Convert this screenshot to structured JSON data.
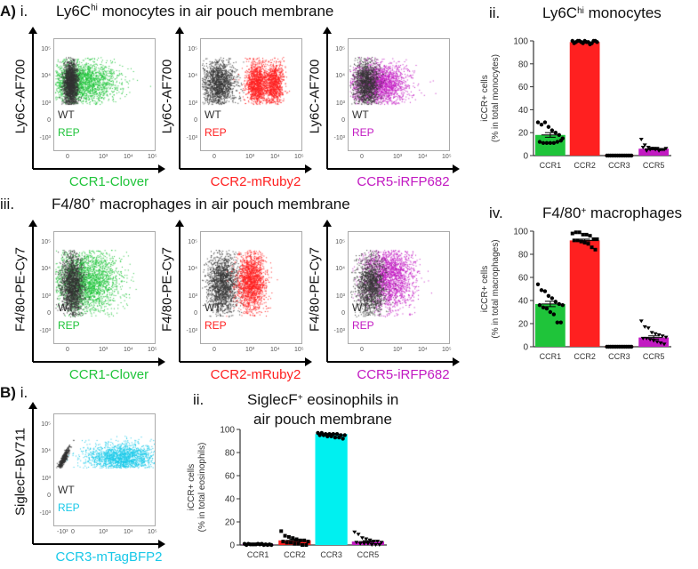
{
  "panelA": {
    "label": "A)",
    "row1": {
      "num": "i.",
      "title_pre": "Ly6C",
      "title_sup": "hi",
      "title_post": " monocytes in air pouch membrane"
    },
    "row2": {
      "num": "iii.",
      "title_pre": "F4/80",
      "title_sup": "+",
      "title_post": " macrophages in air pouch membrane"
    }
  },
  "panelB": {
    "label": "B)",
    "num": "i."
  },
  "colors": {
    "green": "#1fc43a",
    "red": "#ff2020",
    "magenta": "#c21ac2",
    "cyan": "#18c8e8",
    "wt": "#333333"
  },
  "flow_plots": [
    {
      "id": "a1",
      "ylabel": "Ly6C-AF700",
      "xlabel": "CCR1-Clover",
      "color": "#1fc43a",
      "wt": "WT",
      "rep": "REP",
      "yticks": [
        "10⁵",
        "10⁴",
        "10³",
        "0",
        "-10³"
      ],
      "xticks": [
        "0",
        "10³",
        "10⁴",
        "10⁵"
      ]
    },
    {
      "id": "a2",
      "ylabel": "Ly6C-AF700",
      "xlabel": "CCR2-mRuby2",
      "color": "#ff2020",
      "wt": "WT",
      "rep": "REP",
      "yticks": [
        "10⁵",
        "10⁴",
        "10³",
        "0",
        "-10³"
      ],
      "xticks": [
        "0",
        "10³",
        "10⁴",
        "10⁵"
      ]
    },
    {
      "id": "a3",
      "ylabel": "Ly6C-AF700",
      "xlabel": "CCR5-iRFP682",
      "color": "#c21ac2",
      "wt": "WT",
      "rep": "REP",
      "yticks": [
        "10⁵",
        "10⁴",
        "10³",
        "0",
        "-10³"
      ],
      "xticks": [
        "0",
        "10³",
        "10⁴",
        "10⁵"
      ]
    },
    {
      "id": "a4",
      "ylabel": "F4/80-PE-Cy7",
      "xlabel": "CCR1-Clover",
      "color": "#1fc43a",
      "wt": "WT",
      "rep": "REP",
      "yticks": [
        "10⁵",
        "10⁴",
        "10³",
        "0",
        "-10³"
      ],
      "xticks": [
        "0",
        "10³",
        "10⁴",
        "10⁵"
      ]
    },
    {
      "id": "a5",
      "ylabel": "F4/80-PE-Cy7",
      "xlabel": "CCR2-mRuby2",
      "color": "#ff2020",
      "wt": "WT",
      "rep": "REP",
      "yticks": [
        "10⁵",
        "10⁴",
        "10³",
        "0",
        "-10³"
      ],
      "xticks": [
        "0",
        "10³",
        "10⁴",
        "10⁵"
      ]
    },
    {
      "id": "a6",
      "ylabel": "F4/80-PE-Cy7",
      "xlabel": "CCR5-iRFP682",
      "color": "#c21ac2",
      "wt": "WT",
      "rep": "REP",
      "yticks": [
        "10⁵",
        "10⁴",
        "10³",
        "0",
        "-10³"
      ],
      "xticks": [
        "0",
        "10³",
        "10⁴",
        "10⁵"
      ]
    },
    {
      "id": "b1",
      "ylabel": "SiglecF-BV711",
      "xlabel": "CCR3-mTagBFP2",
      "color": "#18c8e8",
      "wt": "WT",
      "rep": "REP",
      "yticks": [
        "10⁵",
        "10⁴",
        "10³",
        "0",
        "-10³"
      ],
      "xticks": [
        "-10³",
        "0",
        "10³",
        "10⁴",
        "10⁵"
      ]
    }
  ],
  "chart_data": [
    {
      "type": "bar",
      "num": "ii.",
      "title_pre": "Ly6C",
      "title_sup": "hi",
      "title_post": " monocytes",
      "title_line2": "",
      "ylabel": "iCCR+ cells",
      "ylabel2": "(% in total monocytes)",
      "ylim": [
        0,
        100
      ],
      "yticks": [
        0,
        20,
        40,
        60,
        80,
        100
      ],
      "categories": [
        "CCR1",
        "CCR2",
        "CCR3",
        "CCR5"
      ],
      "colors": [
        "#1fc43a",
        "#ff2020",
        "#ff2020",
        "#c21ac2"
      ],
      "values": [
        18,
        99,
        0.3,
        6
      ],
      "sem": [
        2,
        0.3,
        0.1,
        0.8
      ],
      "points": [
        [
          29,
          27,
          29,
          25,
          22,
          20,
          18,
          15,
          12,
          11,
          11,
          11,
          11,
          12,
          13
        ],
        [
          100,
          99,
          100,
          98,
          99,
          97,
          100,
          99,
          98,
          100,
          99,
          100,
          99,
          98,
          100
        ],
        [
          0,
          0,
          0,
          0,
          0,
          0,
          0,
          0,
          0,
          0,
          0,
          0,
          0,
          0,
          0
        ],
        [
          14,
          9,
          7,
          6,
          5,
          4,
          5,
          6,
          7,
          4,
          5,
          6,
          6,
          5,
          5
        ]
      ]
    },
    {
      "type": "bar",
      "num": "iv.",
      "title_pre": "F4/80",
      "title_sup": "+",
      "title_post": " macrophages",
      "title_line2": "",
      "ylabel": "iCCR+ cells",
      "ylabel2": "(% in total macrophages)",
      "ylim": [
        0,
        100
      ],
      "yticks": [
        0,
        20,
        40,
        60,
        80,
        100
      ],
      "categories": [
        "CCR1",
        "CCR2",
        "CCR3",
        "CCR5"
      ],
      "colors": [
        "#1fc43a",
        "#ff2020",
        "#ff2020",
        "#c21ac2"
      ],
      "values": [
        37,
        92,
        0.3,
        8
      ],
      "sem": [
        2.3,
        1.1,
        0.1,
        1.4
      ],
      "points": [
        [
          54,
          49,
          48,
          44,
          42,
          39,
          37,
          36,
          36,
          34,
          33,
          30,
          28,
          21,
          21
        ],
        [
          98,
          99,
          99,
          97,
          97,
          96,
          93,
          93,
          92,
          92,
          91,
          90,
          89,
          86,
          84
        ],
        [
          0,
          0,
          0,
          0,
          0,
          0,
          0,
          0,
          0,
          0,
          0,
          0,
          0,
          0,
          0
        ],
        [
          22,
          17,
          16,
          12,
          11,
          10,
          9,
          8,
          7,
          7,
          6,
          5,
          4,
          3,
          2
        ]
      ]
    },
    {
      "type": "bar",
      "num": "ii.",
      "title_pre": "SiglecF",
      "title_sup": "+",
      "title_post": " eosinophils in",
      "title_line2": "air pouch membrane",
      "ylabel": "iCCR+ cells",
      "ylabel2": "(% in total eosinophils)",
      "ylim": [
        0,
        100
      ],
      "yticks": [
        0,
        20,
        40,
        60,
        80,
        100
      ],
      "categories": [
        "CCR1",
        "CCR2",
        "CCR3",
        "CCR5"
      ],
      "colors": [
        "#c21ac2",
        "#ff2020",
        "#00f0f0",
        "#c21ac2"
      ],
      "values": [
        0.5,
        4,
        96,
        3
      ],
      "sem": [
        0.1,
        0.9,
        0.4,
        0.8
      ],
      "points": [
        [
          1,
          1,
          0.5,
          0.5,
          0.5,
          0,
          0,
          0,
          0,
          0.5,
          0.5,
          1,
          1,
          0.5,
          0.5
        ],
        [
          12,
          8,
          7,
          6,
          5,
          4,
          4,
          3,
          3,
          2,
          2,
          1,
          1,
          0,
          0
        ],
        [
          97,
          97,
          96,
          96,
          96,
          96,
          95,
          95,
          95,
          95,
          94,
          94,
          93,
          93,
          92
        ],
        [
          11,
          9,
          6,
          5,
          4,
          3,
          3,
          2,
          2,
          1,
          1,
          1,
          0,
          0,
          0
        ]
      ]
    }
  ]
}
